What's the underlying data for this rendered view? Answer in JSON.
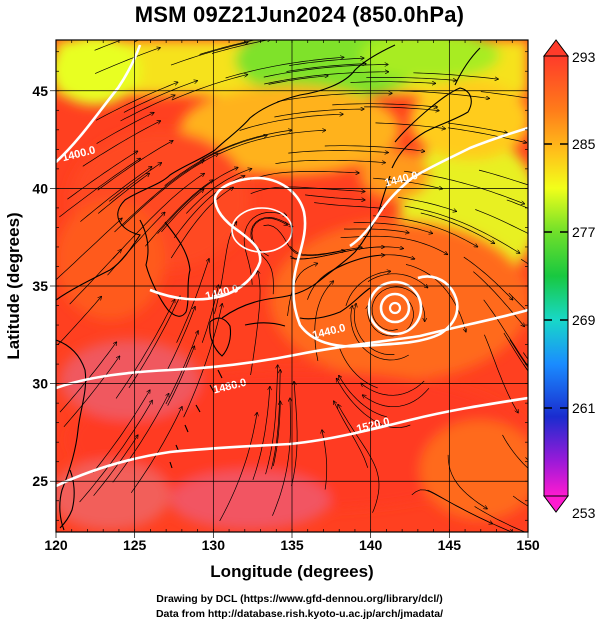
{
  "title": "MSM 09Z21Jun2024 (850.0hPa)",
  "axes": {
    "xlabel": "Longitude (degrees)",
    "ylabel": "Latitude  (degrees)",
    "xticks": [
      120,
      125,
      130,
      135,
      140,
      145,
      150
    ],
    "yticks": [
      25,
      30,
      35,
      40,
      45
    ],
    "xlim": [
      120,
      150
    ],
    "ylim": [
      22.4,
      47.6
    ]
  },
  "colorbar": {
    "max_label": "293",
    "min_label": "253",
    "tick_labels": [
      "285",
      "277",
      "269",
      "261"
    ],
    "tick_values": [
      285,
      277,
      269,
      261
    ],
    "range": [
      253,
      293
    ]
  },
  "contours": [
    {
      "label": "1400.0",
      "lon": 121.5,
      "lat": 41.6
    },
    {
      "label": "1440.0",
      "lon": 142.0,
      "lat": 40.3
    },
    {
      "label": "1440.0",
      "lon": 130.6,
      "lat": 34.5
    },
    {
      "label": "1440.0",
      "lon": 137.4,
      "lat": 32.5
    },
    {
      "label": "1480.0",
      "lon": 131.1,
      "lat": 29.7
    },
    {
      "label": "1520.0",
      "lon": 140.2,
      "lat": 27.7
    }
  ],
  "footer": {
    "line1": "Drawing by DCL (https://www.gfd-dennou.org/library/dcl/)",
    "line2": "Data from http://database.rish.kyoto-u.ac.jp/arch/jmadata/"
  }
}
